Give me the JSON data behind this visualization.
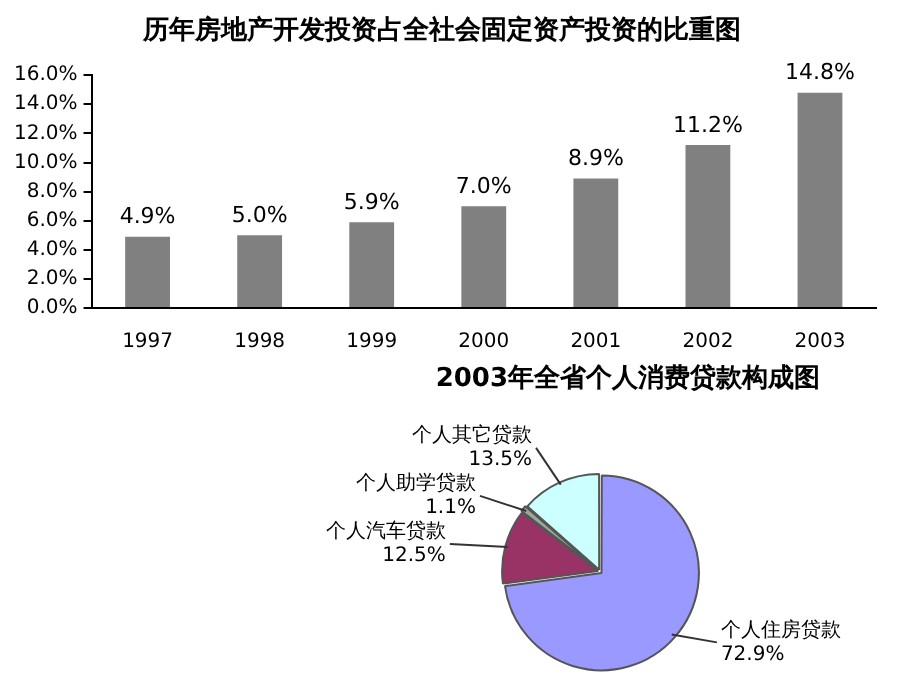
{
  "chart_data": [
    {
      "type": "bar",
      "title": "历年房地产开发投资占全社会固定资产投资的比重图",
      "categories": [
        "1997",
        "1998",
        "1999",
        "2000",
        "2001",
        "2002",
        "2003"
      ],
      "values": [
        4.9,
        5.0,
        5.9,
        7.0,
        8.9,
        11.2,
        14.8
      ],
      "value_labels": [
        "4.9%",
        "5.0%",
        "5.9%",
        "7.0%",
        "8.9%",
        "11.2%",
        "14.8%"
      ],
      "color": "#808080",
      "ylim": [
        0,
        16
      ],
      "yticks": [
        {
          "value": 0,
          "label": "0.0%"
        },
        {
          "value": 2,
          "label": "2.0%"
        },
        {
          "value": 4,
          "label": "4.0%"
        },
        {
          "value": 6,
          "label": "6.0%"
        },
        {
          "value": 8,
          "label": "8.0%"
        },
        {
          "value": 10,
          "label": "10.0%"
        },
        {
          "value": 12,
          "label": "12.0%"
        },
        {
          "value": 14,
          "label": "14.0%"
        },
        {
          "value": 16,
          "label": "16.0%"
        }
      ],
      "grid": false,
      "legend": false
    },
    {
      "type": "pie",
      "title": "2003年全省个人消费贷款构成图",
      "categories": [
        "个人住房贷款",
        "个人汽车贷款",
        "个人助学贷款",
        "个人其它贷款"
      ],
      "values": [
        72.9,
        12.5,
        1.1,
        13.5
      ],
      "value_labels": [
        "72.9%",
        "12.5%",
        "1.1%",
        "13.5%"
      ],
      "colors": [
        "#9999ff",
        "#993366",
        "#99aa99",
        "#ccffff"
      ],
      "legend": false
    }
  ]
}
